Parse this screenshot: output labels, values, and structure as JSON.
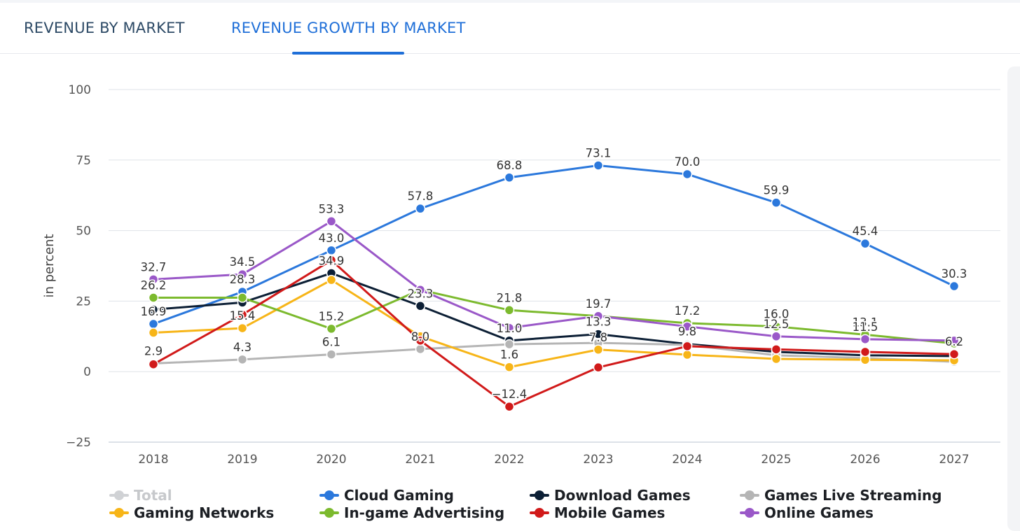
{
  "tabs": [
    {
      "label": "REVENUE BY MARKET",
      "active": false
    },
    {
      "label": "REVENUE GROWTH BY MARKET",
      "active": true
    }
  ],
  "colors": {
    "accent": "#1f6fd8",
    "grid": "#dfe3e8",
    "axis_text": "#555555",
    "data_label": "#333333"
  },
  "chart_data": {
    "type": "line",
    "title": "",
    "xlabel": "",
    "ylabel": "in percent",
    "ylim": [
      -25,
      100
    ],
    "yticks": [
      -25,
      0,
      25,
      50,
      75,
      100
    ],
    "grid": true,
    "legend_position": "bottom",
    "categories": [
      "2018",
      "2019",
      "2020",
      "2021",
      "2022",
      "2023",
      "2024",
      "2025",
      "2026",
      "2027"
    ],
    "series": [
      {
        "name": "Total",
        "color": "#b5b5b5",
        "hidden": true,
        "values": [
          2.9,
          4.3,
          6.1,
          8.0,
          9.7,
          10.2,
          9.5,
          5.8,
          4.8,
          3.9
        ],
        "labels": [
          true,
          true,
          true,
          true,
          false,
          false,
          false,
          false,
          false,
          false
        ]
      },
      {
        "name": "Cloud Gaming",
        "color": "#2b78dc",
        "hidden": false,
        "values": [
          16.9,
          28.3,
          43.0,
          57.8,
          68.8,
          73.1,
          70.0,
          59.9,
          45.4,
          30.3
        ],
        "labels": [
          true,
          true,
          true,
          true,
          true,
          true,
          true,
          true,
          true,
          true
        ]
      },
      {
        "name": "Download Games",
        "color": "#0c1f35",
        "hidden": false,
        "values": [
          22.0,
          24.5,
          34.9,
          23.3,
          11.0,
          13.3,
          9.8,
          7.0,
          5.8,
          5.5
        ],
        "labels": [
          false,
          false,
          true,
          true,
          true,
          true,
          true,
          false,
          false,
          false
        ]
      },
      {
        "name": "Games Live Streaming",
        "color": "#b5b5b5",
        "hidden": false,
        "values": [
          2.9,
          4.3,
          6.1,
          8.0,
          9.7,
          10.2,
          9.5,
          5.8,
          4.8,
          3.5
        ],
        "labels": [
          false,
          false,
          false,
          false,
          false,
          false,
          false,
          false,
          false,
          false
        ]
      },
      {
        "name": "Gaming Networks",
        "color": "#f7b518",
        "hidden": false,
        "values": [
          13.8,
          15.4,
          32.5,
          12.5,
          1.6,
          7.8,
          6.0,
          4.5,
          4.2,
          4.0
        ],
        "labels": [
          false,
          true,
          false,
          false,
          true,
          true,
          false,
          false,
          false,
          false
        ]
      },
      {
        "name": "In-game Advertising",
        "color": "#7cba2e",
        "hidden": false,
        "values": [
          26.2,
          26.2,
          15.2,
          29.0,
          21.8,
          19.7,
          17.2,
          16.0,
          13.1,
          10.0
        ],
        "labels": [
          true,
          false,
          true,
          false,
          true,
          false,
          true,
          true,
          true,
          false
        ]
      },
      {
        "name": "Mobile Games",
        "color": "#d11a1a",
        "hidden": false,
        "values": [
          2.6,
          20.2,
          39.5,
          11.0,
          -12.4,
          1.5,
          9.0,
          7.9,
          7.0,
          6.2
        ],
        "labels": [
          false,
          false,
          false,
          false,
          true,
          false,
          false,
          false,
          false,
          true
        ]
      },
      {
        "name": "Online Games",
        "color": "#9a58c8",
        "hidden": false,
        "values": [
          32.7,
          34.5,
          53.3,
          29.0,
          15.5,
          19.7,
          16.0,
          12.5,
          11.5,
          11.0
        ],
        "labels": [
          true,
          true,
          true,
          false,
          false,
          true,
          false,
          true,
          true,
          false
        ]
      }
    ],
    "data_label_texts": [
      {
        "text": "32.7"
      },
      {
        "text": "34.5"
      },
      {
        "text": "53.3"
      },
      {
        "text": "26.2"
      },
      {
        "text": "28.3"
      },
      {
        "text": "43.0"
      },
      {
        "text": "57.8"
      },
      {
        "text": "68.8"
      },
      {
        "text": "73.1"
      },
      {
        "text": "70.0"
      },
      {
        "text": "59.9"
      },
      {
        "text": "45.4"
      },
      {
        "text": "30.3"
      }
    ]
  },
  "legend": [
    {
      "label": "Total",
      "color": "#b5b5b5",
      "hidden": true
    },
    {
      "label": "Cloud Gaming",
      "color": "#2b78dc",
      "hidden": false
    },
    {
      "label": "Download Games",
      "color": "#0c1f35",
      "hidden": false
    },
    {
      "label": "Games Live Streaming",
      "color": "#b5b5b5",
      "hidden": false
    },
    {
      "label": "Gaming Networks",
      "color": "#f7b518",
      "hidden": false
    },
    {
      "label": "In-game Advertising",
      "color": "#7cba2e",
      "hidden": false
    },
    {
      "label": "Mobile Games",
      "color": "#d11a1a",
      "hidden": false
    },
    {
      "label": "Online Games",
      "color": "#9a58c8",
      "hidden": false
    }
  ]
}
